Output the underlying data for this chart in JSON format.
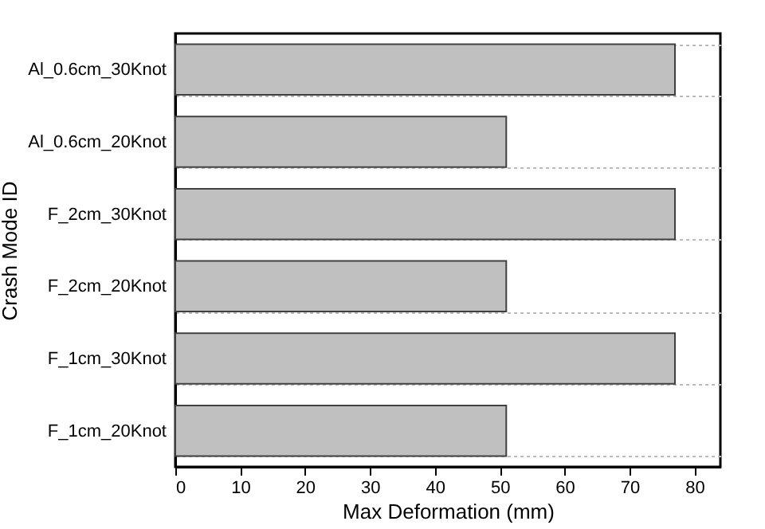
{
  "chart_data": {
    "type": "bar",
    "orientation": "horizontal",
    "xlabel": "Max Deformation (mm)",
    "ylabel": "Crash Mode ID",
    "categories": [
      "Al_0.6cm_30Knot",
      "Al_0.6cm_20Knot",
      "F_2cm_30Knot",
      "F_2cm_20Knot",
      "F_1cm_30Knot",
      "F_1cm_20Knot"
    ],
    "values": [
      77,
      51,
      77,
      51,
      77,
      51
    ],
    "color": "#c0c0c0",
    "xlim": [
      0,
      84
    ],
    "xticks": [
      0,
      10,
      20,
      30,
      40,
      50,
      60,
      70,
      80
    ],
    "grid": "y"
  }
}
